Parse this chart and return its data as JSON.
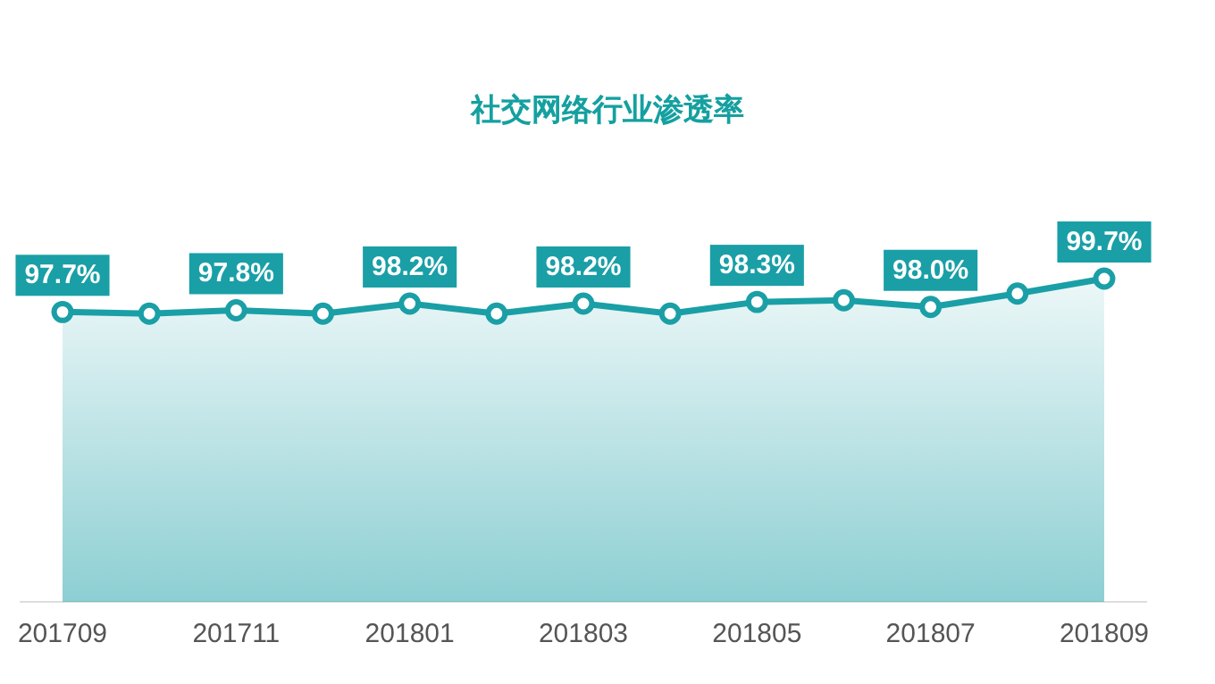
{
  "chart_data": {
    "type": "area",
    "title": "社交网络行业渗透率",
    "categories": [
      "201709",
      null,
      "201711",
      null,
      "201801",
      null,
      "201803",
      null,
      "201805",
      null,
      "201807",
      null,
      "201809"
    ],
    "series": [
      {
        "color": "#1a9fa6",
        "values": [
          97.7,
          97.6,
          97.8,
          97.6,
          98.2,
          97.6,
          98.2,
          97.6,
          98.3,
          98.4,
          98.0,
          98.8,
          99.7
        ],
        "value_labels": [
          "97.7%",
          null,
          "97.8%",
          null,
          "98.2%",
          null,
          "98.2%",
          null,
          "98.3%",
          null,
          "98.0%",
          null,
          "99.7%"
        ]
      }
    ],
    "tick_labels": "x",
    "marker": "circle"
  }
}
